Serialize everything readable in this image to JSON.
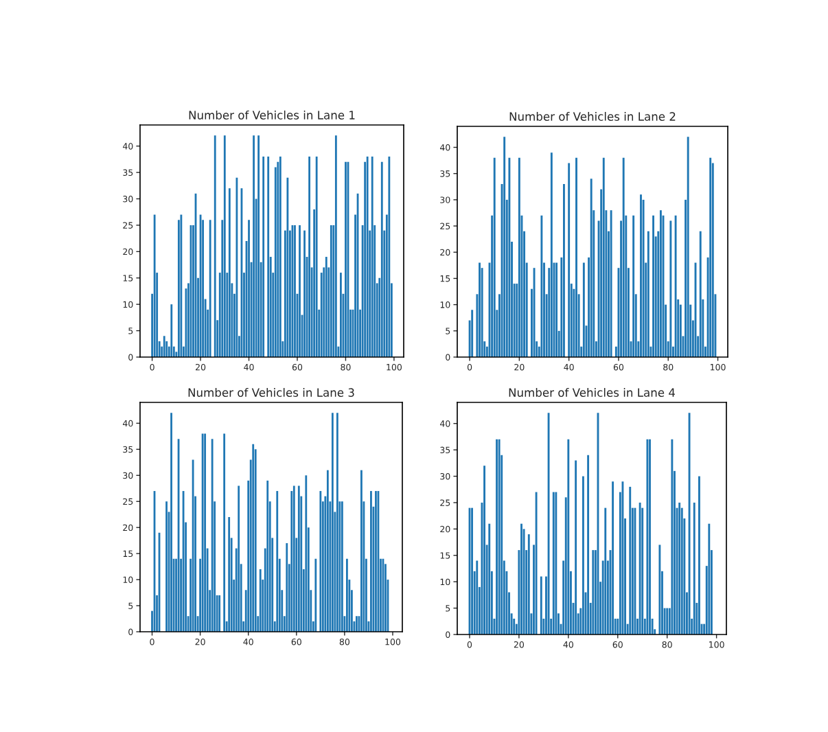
{
  "chart_data": [
    {
      "type": "bar",
      "title": "Number of Vehicles in Lane 1",
      "color": "#1f77b4",
      "xlim": [
        -5,
        104
      ],
      "ylim": [
        0,
        44
      ],
      "xticks": [
        0,
        20,
        40,
        60,
        80,
        100
      ],
      "yticks": [
        0,
        5,
        10,
        15,
        20,
        25,
        30,
        35,
        40
      ],
      "grid": false,
      "x": [
        0,
        1,
        2,
        3,
        4,
        5,
        6,
        7,
        8,
        9,
        10,
        11,
        12,
        13,
        14,
        15,
        16,
        17,
        18,
        19,
        20,
        21,
        22,
        23,
        24,
        25,
        26,
        27,
        28,
        29,
        30,
        31,
        32,
        33,
        34,
        35,
        36,
        37,
        38,
        39,
        40,
        41,
        42,
        43,
        44,
        45,
        46,
        47,
        48,
        49,
        50,
        51,
        52,
        53,
        54,
        55,
        56,
        57,
        58,
        59,
        60,
        61,
        62,
        63,
        64,
        65,
        66,
        67,
        68,
        69,
        70,
        71,
        72,
        73,
        74,
        75,
        76,
        77,
        78,
        79,
        80,
        81,
        82,
        83,
        84,
        85,
        86,
        87,
        88,
        89,
        90,
        91,
        92,
        93,
        94,
        95,
        96,
        97,
        98,
        99
      ],
      "values": [
        12,
        27,
        16,
        3,
        2,
        4,
        3,
        2,
        10,
        2,
        1,
        26,
        27,
        2,
        13,
        14,
        25,
        25,
        31,
        15,
        27,
        26,
        11,
        9,
        26,
        0,
        42,
        7,
        16,
        26,
        42,
        16,
        32,
        14,
        12,
        34,
        4,
        32,
        16,
        22,
        26,
        18,
        42,
        30,
        42,
        18,
        38,
        0,
        38,
        19,
        16,
        36,
        37,
        38,
        3,
        24,
        34,
        24,
        25,
        25,
        12,
        25,
        8,
        24,
        19,
        38,
        17,
        28,
        38,
        9,
        16,
        17,
        19,
        17,
        25,
        25,
        42,
        2,
        16,
        12,
        37,
        37,
        9,
        9,
        27,
        31,
        9,
        25,
        37,
        38,
        24,
        38,
        25,
        14,
        15,
        37,
        24,
        27,
        38,
        14
      ]
    },
    {
      "type": "bar",
      "title": "Number of Vehicles in Lane 2",
      "color": "#1f77b4",
      "xlim": [
        -5,
        104
      ],
      "ylim": [
        0,
        44
      ],
      "xticks": [
        0,
        20,
        40,
        60,
        80,
        100
      ],
      "yticks": [
        0,
        5,
        10,
        15,
        20,
        25,
        30,
        35,
        40
      ],
      "grid": false,
      "x": [
        0,
        1,
        2,
        3,
        4,
        5,
        6,
        7,
        8,
        9,
        10,
        11,
        12,
        13,
        14,
        15,
        16,
        17,
        18,
        19,
        20,
        21,
        22,
        23,
        24,
        25,
        26,
        27,
        28,
        29,
        30,
        31,
        32,
        33,
        34,
        35,
        36,
        37,
        38,
        39,
        40,
        41,
        42,
        43,
        44,
        45,
        46,
        47,
        48,
        49,
        50,
        51,
        52,
        53,
        54,
        55,
        56,
        57,
        58,
        59,
        60,
        61,
        62,
        63,
        64,
        65,
        66,
        67,
        68,
        69,
        70,
        71,
        72,
        73,
        74,
        75,
        76,
        77,
        78,
        79,
        80,
        81,
        82,
        83,
        84,
        85,
        86,
        87,
        88,
        89,
        90,
        91,
        92,
        93,
        94,
        95,
        96,
        97,
        98,
        99
      ],
      "values": [
        7,
        9,
        0,
        12,
        18,
        17,
        3,
        2,
        18,
        27,
        38,
        9,
        12,
        33,
        42,
        30,
        38,
        22,
        14,
        14,
        38,
        27,
        24,
        18,
        0,
        13,
        17,
        3,
        2,
        27,
        18,
        12,
        17,
        39,
        18,
        18,
        5,
        19,
        33,
        0,
        37,
        14,
        13,
        38,
        12,
        2,
        18,
        6,
        19,
        34,
        28,
        3,
        26,
        32,
        38,
        28,
        24,
        28,
        0,
        2,
        17,
        26,
        38,
        27,
        17,
        3,
        27,
        12,
        3,
        31,
        30,
        18,
        24,
        2,
        27,
        23,
        24,
        28,
        27,
        10,
        3,
        26,
        2,
        27,
        11,
        10,
        4,
        30,
        42,
        10,
        7,
        18,
        4,
        24,
        11,
        2,
        19,
        38,
        37,
        12
      ]
    },
    {
      "type": "bar",
      "title": "Number of Vehicles in Lane 3",
      "color": "#1f77b4",
      "xlim": [
        -5,
        104
      ],
      "ylim": [
        0,
        44
      ],
      "xticks": [
        0,
        20,
        40,
        60,
        80,
        100
      ],
      "yticks": [
        0,
        5,
        10,
        15,
        20,
        25,
        30,
        35,
        40
      ],
      "grid": false,
      "x": [
        0,
        1,
        2,
        3,
        4,
        5,
        6,
        7,
        8,
        9,
        10,
        11,
        12,
        13,
        14,
        15,
        16,
        17,
        18,
        19,
        20,
        21,
        22,
        23,
        24,
        25,
        26,
        27,
        28,
        29,
        30,
        31,
        32,
        33,
        34,
        35,
        36,
        37,
        38,
        39,
        40,
        41,
        42,
        43,
        44,
        45,
        46,
        47,
        48,
        49,
        50,
        51,
        52,
        53,
        54,
        55,
        56,
        57,
        58,
        59,
        60,
        61,
        62,
        63,
        64,
        65,
        66,
        67,
        68,
        69,
        70,
        71,
        72,
        73,
        74,
        75,
        76,
        77,
        78,
        79,
        80,
        81,
        82,
        83,
        84,
        85,
        86,
        87,
        88,
        89,
        90,
        91,
        92,
        93,
        94,
        95,
        96,
        97,
        98,
        99
      ],
      "values": [
        4,
        27,
        7,
        19,
        0,
        0,
        25,
        23,
        42,
        14,
        14,
        37,
        14,
        27,
        21,
        3,
        14,
        33,
        26,
        3,
        14,
        38,
        38,
        16,
        8,
        37,
        25,
        7,
        7,
        0,
        38,
        2,
        22,
        18,
        10,
        16,
        28,
        13,
        2,
        8,
        29,
        33,
        36,
        35,
        3,
        12,
        10,
        16,
        29,
        25,
        18,
        2,
        27,
        14,
        8,
        3,
        17,
        13,
        27,
        28,
        18,
        28,
        26,
        12,
        30,
        20,
        8,
        2,
        14,
        0,
        27,
        25,
        26,
        31,
        25,
        42,
        23,
        42,
        25,
        25,
        3,
        14,
        10,
        8,
        2,
        3,
        3,
        31,
        25,
        14,
        2,
        27,
        24,
        27,
        27,
        14,
        14,
        13,
        10,
        0
      ]
    },
    {
      "type": "bar",
      "title": "Number of Vehicles in Lane 4",
      "color": "#1f77b4",
      "xlim": [
        -5,
        104
      ],
      "ylim": [
        0,
        44
      ],
      "xticks": [
        0,
        20,
        40,
        60,
        80,
        100
      ],
      "yticks": [
        0,
        5,
        10,
        15,
        20,
        25,
        30,
        35,
        40
      ],
      "grid": false,
      "x": [
        0,
        1,
        2,
        3,
        4,
        5,
        6,
        7,
        8,
        9,
        10,
        11,
        12,
        13,
        14,
        15,
        16,
        17,
        18,
        19,
        20,
        21,
        22,
        23,
        24,
        25,
        26,
        27,
        28,
        29,
        30,
        31,
        32,
        33,
        34,
        35,
        36,
        37,
        38,
        39,
        40,
        41,
        42,
        43,
        44,
        45,
        46,
        47,
        48,
        49,
        50,
        51,
        52,
        53,
        54,
        55,
        56,
        57,
        58,
        59,
        60,
        61,
        62,
        63,
        64,
        65,
        66,
        67,
        68,
        69,
        70,
        71,
        72,
        73,
        74,
        75,
        76,
        77,
        78,
        79,
        80,
        81,
        82,
        83,
        84,
        85,
        86,
        87,
        88,
        89,
        90,
        91,
        92,
        93,
        94,
        95,
        96,
        97,
        98,
        99
      ],
      "values": [
        24,
        24,
        12,
        14,
        9,
        25,
        32,
        17,
        21,
        12,
        3,
        37,
        37,
        34,
        14,
        12,
        8,
        4,
        3,
        2,
        16,
        21,
        20,
        16,
        19,
        4,
        17,
        27,
        0,
        11,
        3,
        11,
        42,
        3,
        27,
        27,
        4,
        2,
        14,
        26,
        37,
        12,
        6,
        33,
        4,
        5,
        30,
        8,
        34,
        6,
        16,
        16,
        42,
        10,
        14,
        24,
        14,
        16,
        29,
        3,
        3,
        27,
        29,
        22,
        2,
        28,
        24,
        24,
        3,
        25,
        24,
        3,
        37,
        37,
        3,
        1,
        0,
        17,
        12,
        5,
        5,
        5,
        37,
        31,
        24,
        25,
        24,
        22,
        8,
        42,
        3,
        25,
        6,
        30,
        2,
        2,
        13,
        21,
        16,
        0
      ]
    }
  ]
}
